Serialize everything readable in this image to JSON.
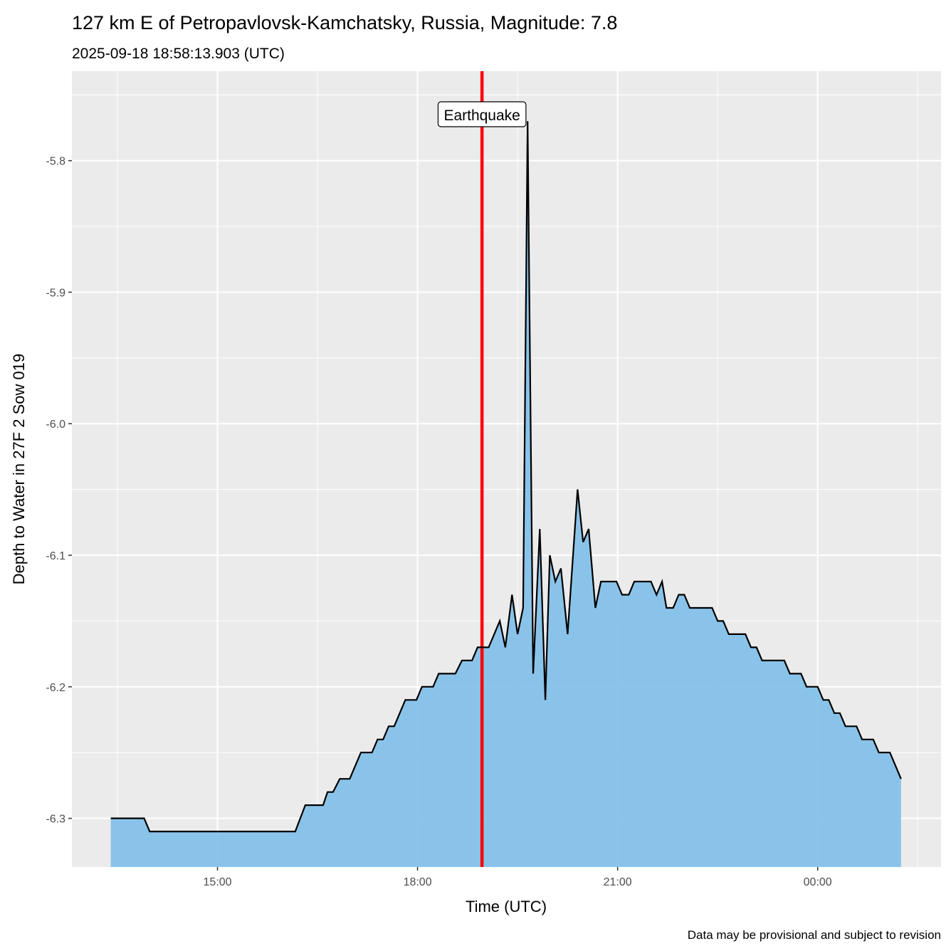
{
  "chart_data": {
    "type": "area",
    "title": "127 km E of Petropavlovsk-Kamchatsky, Russia, Magnitude: 7.8",
    "subtitle": "2025-09-18 18:58:13.903 (UTC)",
    "xlabel": "Time (UTC)",
    "ylabel": "Depth to Water in 27F 2 Sow 019",
    "caption": "Data may be provisional and subject to revision",
    "xlim": [
      "2025-09-18 12:49",
      "2025-09-19 01:51"
    ],
    "ylim": [
      -6.337,
      -5.732
    ],
    "x_ticks": [
      {
        "t": "2025-09-18 15:00",
        "label": "15:00"
      },
      {
        "t": "2025-09-18 18:00",
        "label": "18:00"
      },
      {
        "t": "2025-09-18 21:00",
        "label": "21:00"
      },
      {
        "t": "2025-09-19 00:00",
        "label": "00:00"
      }
    ],
    "y_ticks": [
      {
        "v": -5.8,
        "label": "-5.8"
      },
      {
        "v": -5.9,
        "label": "-5.9"
      },
      {
        "v": -6.0,
        "label": "-6.0"
      },
      {
        "v": -6.1,
        "label": "-6.1"
      },
      {
        "v": -6.2,
        "label": "-6.2"
      },
      {
        "v": -6.3,
        "label": "-6.3"
      }
    ],
    "grid": true,
    "fill_color": "#85c1e9",
    "line_color": "#000000",
    "event": {
      "t": "2025-09-18 18:58",
      "label": "Earthquake",
      "color": "#ff0000"
    },
    "points": [
      [
        "2025-09-18 13:24",
        -6.3
      ],
      [
        "2025-09-18 13:54",
        -6.3
      ],
      [
        "2025-09-18 13:59",
        -6.31
      ],
      [
        "2025-09-18 16:10",
        -6.31
      ],
      [
        "2025-09-18 16:19",
        -6.29
      ],
      [
        "2025-09-18 16:35",
        -6.29
      ],
      [
        "2025-09-18 16:39",
        -6.28
      ],
      [
        "2025-09-18 16:44",
        -6.28
      ],
      [
        "2025-09-18 16:50",
        -6.27
      ],
      [
        "2025-09-18 16:59",
        -6.27
      ],
      [
        "2025-09-18 17:09",
        -6.25
      ],
      [
        "2025-09-18 17:19",
        -6.25
      ],
      [
        "2025-09-18 17:24",
        -6.24
      ],
      [
        "2025-09-18 17:29",
        -6.24
      ],
      [
        "2025-09-18 17:34",
        -6.23
      ],
      [
        "2025-09-18 17:39",
        -6.23
      ],
      [
        "2025-09-18 17:49",
        -6.21
      ],
      [
        "2025-09-18 17:59",
        -6.21
      ],
      [
        "2025-09-18 18:04",
        -6.2
      ],
      [
        "2025-09-18 18:14",
        -6.2
      ],
      [
        "2025-09-18 18:19",
        -6.19
      ],
      [
        "2025-09-18 18:34",
        -6.19
      ],
      [
        "2025-09-18 18:40",
        -6.18
      ],
      [
        "2025-09-18 18:49",
        -6.18
      ],
      [
        "2025-09-18 18:54",
        -6.17
      ],
      [
        "2025-09-18 19:04",
        -6.17
      ],
      [
        "2025-09-18 19:14",
        -6.15
      ],
      [
        "2025-09-18 19:19",
        -6.17
      ],
      [
        "2025-09-18 19:25",
        -6.13
      ],
      [
        "2025-09-18 19:30",
        -6.16
      ],
      [
        "2025-09-18 19:35",
        -6.14
      ],
      [
        "2025-09-18 19:39",
        -5.77
      ],
      [
        "2025-09-18 19:44",
        -6.19
      ],
      [
        "2025-09-18 19:50",
        -6.08
      ],
      [
        "2025-09-18 19:55",
        -6.21
      ],
      [
        "2025-09-18 19:59",
        -6.1
      ],
      [
        "2025-09-18 20:04",
        -6.12
      ],
      [
        "2025-09-18 20:09",
        -6.11
      ],
      [
        "2025-09-18 20:15",
        -6.16
      ],
      [
        "2025-09-18 20:24",
        -6.05
      ],
      [
        "2025-09-18 20:29",
        -6.09
      ],
      [
        "2025-09-18 20:34",
        -6.08
      ],
      [
        "2025-09-18 20:40",
        -6.14
      ],
      [
        "2025-09-18 20:45",
        -6.12
      ],
      [
        "2025-09-18 20:59",
        -6.12
      ],
      [
        "2025-09-18 21:04",
        -6.13
      ],
      [
        "2025-09-18 21:10",
        -6.13
      ],
      [
        "2025-09-18 21:15",
        -6.12
      ],
      [
        "2025-09-18 21:30",
        -6.12
      ],
      [
        "2025-09-18 21:35",
        -6.13
      ],
      [
        "2025-09-18 21:40",
        -6.12
      ],
      [
        "2025-09-18 21:44",
        -6.14
      ],
      [
        "2025-09-18 21:50",
        -6.14
      ],
      [
        "2025-09-18 21:55",
        -6.13
      ],
      [
        "2025-09-18 22:00",
        -6.13
      ],
      [
        "2025-09-18 22:05",
        -6.14
      ],
      [
        "2025-09-18 22:25",
        -6.14
      ],
      [
        "2025-09-18 22:30",
        -6.15
      ],
      [
        "2025-09-18 22:35",
        -6.15
      ],
      [
        "2025-09-18 22:40",
        -6.16
      ],
      [
        "2025-09-18 22:55",
        -6.16
      ],
      [
        "2025-09-18 23:00",
        -6.17
      ],
      [
        "2025-09-18 23:05",
        -6.17
      ],
      [
        "2025-09-18 23:10",
        -6.18
      ],
      [
        "2025-09-18 23:30",
        -6.18
      ],
      [
        "2025-09-18 23:35",
        -6.19
      ],
      [
        "2025-09-18 23:45",
        -6.19
      ],
      [
        "2025-09-18 23:50",
        -6.2
      ],
      [
        "2025-09-19 00:00",
        -6.2
      ],
      [
        "2025-09-19 00:05",
        -6.21
      ],
      [
        "2025-09-19 00:10",
        -6.21
      ],
      [
        "2025-09-19 00:15",
        -6.22
      ],
      [
        "2025-09-19 00:20",
        -6.22
      ],
      [
        "2025-09-19 00:25",
        -6.23
      ],
      [
        "2025-09-19 00:35",
        -6.23
      ],
      [
        "2025-09-19 00:40",
        -6.24
      ],
      [
        "2025-09-19 00:50",
        -6.24
      ],
      [
        "2025-09-19 00:55",
        -6.25
      ],
      [
        "2025-09-19 01:05",
        -6.25
      ],
      [
        "2025-09-19 01:15",
        -6.27
      ]
    ]
  }
}
